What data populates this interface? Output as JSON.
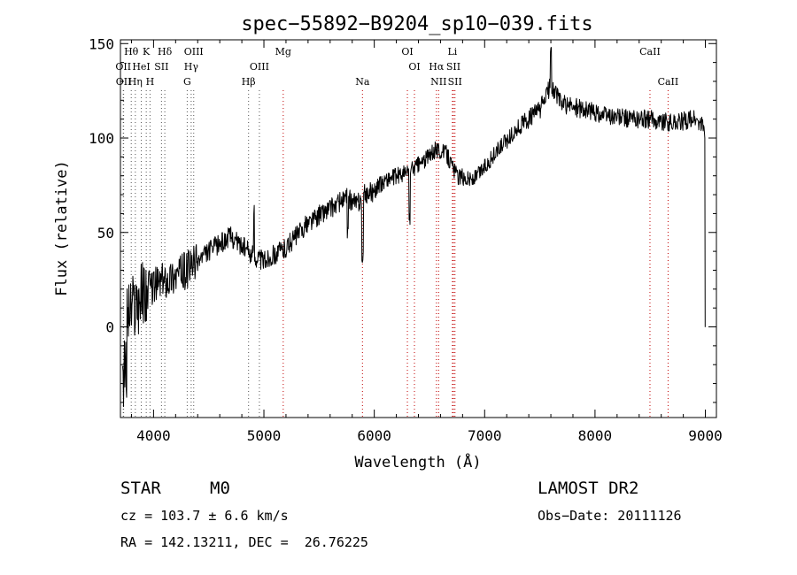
{
  "chart_data": {
    "type": "line",
    "title": "spec−55892−B9204_sp10−039.fits",
    "xlabel": "Wavelength (Å)",
    "ylabel": "Flux (relative)",
    "xlim": [
      3700,
      9100
    ],
    "ylim": [
      -48,
      152
    ],
    "x_ticks": [
      4000,
      5000,
      6000,
      7000,
      8000,
      9000
    ],
    "x_tick_labels": [
      "4000",
      "5000",
      "6000",
      "7000",
      "8000",
      "9000"
    ],
    "y_ticks": [
      0,
      50,
      100,
      150
    ],
    "y_tick_labels": [
      "0",
      "50",
      "100",
      "150"
    ],
    "grid": false,
    "line_color": "#000000",
    "marker_color": "#c00000",
    "spectrum_anchors": {
      "x": [
        3720,
        3800,
        3900,
        4000,
        4100,
        4300,
        4500,
        4700,
        4900,
        5000,
        5200,
        5400,
        5600,
        5750,
        5850,
        5900,
        6000,
        6100,
        6300,
        6450,
        6560,
        6650,
        6750,
        6900,
        7100,
        7300,
        7500,
        7600,
        7700,
        7900,
        8100,
        8300,
        8500,
        8700,
        8900,
        8990,
        9000
      ],
      "y": [
        5,
        10,
        18,
        22,
        25,
        30,
        40,
        48,
        38,
        35,
        42,
        55,
        63,
        68,
        65,
        70,
        72,
        78,
        82,
        88,
        94,
        92,
        80,
        78,
        92,
        105,
        115,
        128,
        118,
        115,
        112,
        110,
        110,
        108,
        110,
        105,
        0
      ]
    },
    "spectral_lines": [
      {
        "label": "Hθ",
        "wavelength": 3798,
        "row": 1,
        "color": "#555555"
      },
      {
        "label": "K",
        "wavelength": 3934,
        "row": 1,
        "color": "#555555"
      },
      {
        "label": "Hδ",
        "wavelength": 4102,
        "row": 1,
        "color": "#555555"
      },
      {
        "label": "OIII",
        "wavelength": 4364,
        "row": 1,
        "color": "#555555"
      },
      {
        "label": "Mg",
        "wavelength": 5175,
        "row": 1,
        "color": "#c00000"
      },
      {
        "label": "OI",
        "wavelength": 6300,
        "row": 1,
        "color": "#c00000"
      },
      {
        "label": "Li",
        "wavelength": 6708,
        "row": 1,
        "color": "#c00000"
      },
      {
        "label": "CaII",
        "wavelength": 8498,
        "row": 1,
        "color": "#c00000"
      },
      {
        "label": "OII",
        "wavelength": 3726,
        "row": 2,
        "color": "#555555"
      },
      {
        "label": "HeI",
        "wavelength": 3889,
        "row": 2,
        "color": "#555555"
      },
      {
        "label": "SII",
        "wavelength": 4072,
        "row": 2,
        "color": "#555555"
      },
      {
        "label": "Hγ",
        "wavelength": 4341,
        "row": 2,
        "color": "#555555"
      },
      {
        "label": "OIII",
        "wavelength": 4959,
        "row": 2,
        "color": "#555555"
      },
      {
        "label": "OI",
        "wavelength": 6364,
        "row": 2,
        "color": "#c00000"
      },
      {
        "label": "Hα",
        "wavelength": 6563,
        "row": 2,
        "color": "#c00000"
      },
      {
        "label": "SII",
        "wavelength": 6717,
        "row": 2,
        "color": "#c00000"
      },
      {
        "label": "OII",
        "wavelength": 3729,
        "row": 3,
        "color": "#555555"
      },
      {
        "label": "Hη",
        "wavelength": 3835,
        "row": 3,
        "color": "#555555"
      },
      {
        "label": "H",
        "wavelength": 3968,
        "row": 3,
        "color": "#555555"
      },
      {
        "label": "G",
        "wavelength": 4305,
        "row": 3,
        "color": "#555555"
      },
      {
        "label": "Hβ",
        "wavelength": 4861,
        "row": 3,
        "color": "#555555"
      },
      {
        "label": "Na",
        "wavelength": 5893,
        "row": 3,
        "color": "#c00000"
      },
      {
        "label": "NII",
        "wavelength": 6583,
        "row": 3,
        "color": "#c00000"
      },
      {
        "label": "SII",
        "wavelength": 6731,
        "row": 3,
        "color": "#c00000"
      },
      {
        "label": "CaII",
        "wavelength": 8662,
        "row": 3,
        "color": "#c00000"
      }
    ],
    "annotations": {
      "object_type": "STAR",
      "subclass": "M0",
      "survey": "LAMOST DR2",
      "redshift": "cz = 103.7 ± 6.6 km/s",
      "obs_date": "Obs−Date: 20111126",
      "coords": "RA = 142.13211, DEC =  26.76225"
    }
  }
}
